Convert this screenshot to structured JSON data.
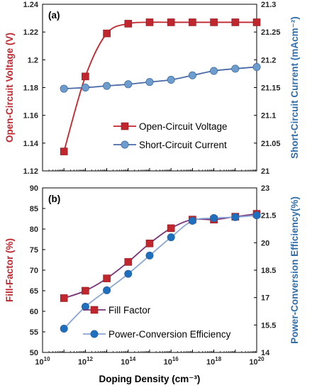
{
  "chart_data": [
    {
      "type": "line",
      "panel_label": "(a)",
      "x_scale": "log",
      "x": [
        100000000000.0,
        1000000000000.0,
        10000000000000.0,
        100000000000000.0,
        1000000000000000.0,
        1e+16,
        1e+17,
        1e+18,
        1e+19,
        1e+20
      ],
      "xlim": [
        10000000000.0,
        1e+20
      ],
      "ylabel": "Open-Circuit Voltage (V)",
      "ylabel_right": "Short-Circuit Current (mAcm⁻²)",
      "ylim": [
        1.12,
        1.24
      ],
      "yticks": [
        1.12,
        1.14,
        1.16,
        1.18,
        1.2,
        1.22,
        1.24
      ],
      "ytick_labels": [
        "1.12",
        "1.14",
        "1.16",
        "1.18",
        "1.2",
        "1.22",
        "1.24"
      ],
      "ylim_right": [
        21.0,
        21.3
      ],
      "yticks_right": [
        21.0,
        21.05,
        21.1,
        21.15,
        21.2,
        21.25,
        21.3
      ],
      "ytick_labels_right": [
        "21",
        "21.05",
        "21.1",
        "21.15",
        "21.2",
        "21.25",
        "21.3"
      ],
      "series": [
        {
          "name": "Open-Circuit Voltage",
          "axis": "left",
          "marker": "square",
          "color": "#c0262e",
          "line_color": "#c0262e",
          "values": [
            1.134,
            1.188,
            1.219,
            1.226,
            1.227,
            1.227,
            1.227,
            1.227,
            1.227,
            1.227
          ]
        },
        {
          "name": "Short-Circuit Current",
          "axis": "right",
          "marker": "circle",
          "color": "#6d9ccd",
          "line_color": "#4a6aa8",
          "values": [
            21.148,
            21.15,
            21.153,
            21.156,
            21.16,
            21.164,
            21.172,
            21.18,
            21.184,
            21.187
          ]
        }
      ],
      "legend": "lower-right",
      "grid": false
    },
    {
      "type": "line",
      "panel_label": "(b)",
      "x_scale": "log",
      "x": [
        100000000000.0,
        1000000000000.0,
        10000000000000.0,
        100000000000000.0,
        1000000000000000.0,
        1e+16,
        1e+17,
        1e+18,
        1e+19,
        1e+20
      ],
      "xlim": [
        10000000000.0,
        1e+20
      ],
      "xlabel": "Doping Density (cm⁻³)",
      "xtick_exponents": [
        "10",
        "12",
        "14",
        "16",
        "18",
        "20"
      ],
      "xtick_base": "10",
      "ylabel": "Fill-Factor (%)",
      "ylabel_right": "Power-Conversion Efficiency(%)",
      "ylim": [
        50,
        90
      ],
      "yticks": [
        50,
        55,
        60,
        65,
        70,
        75,
        80,
        85,
        90
      ],
      "ytick_labels": [
        "50",
        "55",
        "60",
        "65",
        "70",
        "75",
        "80",
        "85",
        "90"
      ],
      "ylim_right": [
        14,
        23
      ],
      "yticks_right": [
        14,
        15.5,
        17,
        18.5,
        20,
        21.5,
        23
      ],
      "ytick_labels_right": [
        "14",
        "15.5",
        "17",
        "18.5",
        "20",
        "21.5",
        "23"
      ],
      "series": [
        {
          "name": "Fill Factor",
          "axis": "left",
          "marker": "square",
          "color": "#c0262e",
          "line_color": "#7a3578",
          "values": [
            63.2,
            65.0,
            68.0,
            72.0,
            76.5,
            80.2,
            82.3,
            82.3,
            83.0,
            83.7
          ]
        },
        {
          "name": "Power-Conversion Efficiency",
          "axis": "right",
          "marker": "circle",
          "color": "#1f6fbf",
          "line_color": "#8aa6d6",
          "values": [
            15.3,
            16.5,
            17.4,
            18.3,
            19.3,
            20.3,
            21.2,
            21.35,
            21.4,
            21.5
          ]
        }
      ],
      "legend": "lower-right",
      "grid": false
    }
  ],
  "colors": {
    "left_axis_label": "#c0262e",
    "right_axis_label": "#2f6eaa",
    "frame": "#000000"
  }
}
